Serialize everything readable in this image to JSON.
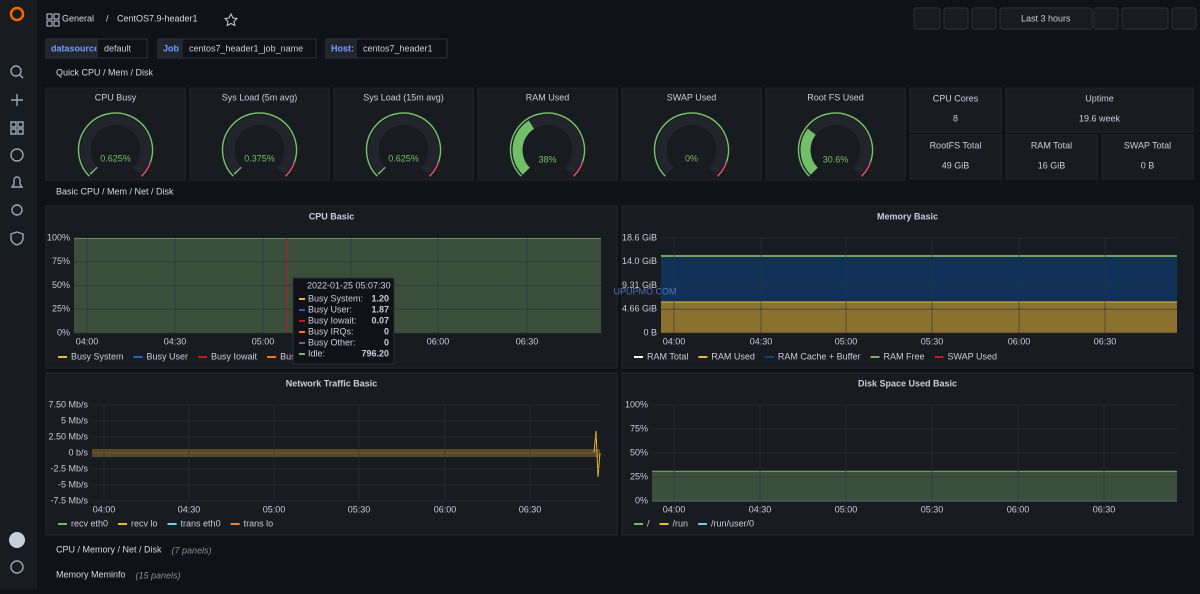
{
  "header": {
    "folder": "General",
    "separator": "/",
    "title": "CentOS7.9-header1",
    "time_range": "Last 3 hours"
  },
  "variables": [
    {
      "label": "datasource",
      "value": "default"
    },
    {
      "label": "Job",
      "value": "centos7_header1_job_name"
    },
    {
      "label": "Host:",
      "value": "centos7_header1"
    }
  ],
  "rows": [
    "Quick CPU / Mem / Disk",
    "Basic CPU / Mem / Net / Disk"
  ],
  "gauges": [
    {
      "title": "CPU Busy",
      "value": "0.625%"
    },
    {
      "title": "Sys Load (5m avg)",
      "value": "0.375%"
    },
    {
      "title": "Sys Load (15m avg)",
      "value": "0.625%"
    },
    {
      "title": "RAM Used",
      "value": "38%"
    },
    {
      "title": "SWAP Used",
      "value": "0%"
    },
    {
      "title": "Root FS Used",
      "value": "30.6%"
    }
  ],
  "stats": [
    {
      "title": "CPU Cores",
      "value": "8"
    },
    {
      "title": "Uptime",
      "value": "19.6 week"
    },
    {
      "title": "RootFS Total",
      "value": "49 GiB"
    },
    {
      "title": "RAM Total",
      "value": "16 GiB"
    },
    {
      "title": "SWAP Total",
      "value": "0 B"
    }
  ],
  "graphs": [
    {
      "title": "CPU Basic",
      "yticks": [
        "100%",
        "75%",
        "50%",
        "25%",
        "0%"
      ],
      "xticks": [
        "04:00",
        "04:30",
        "05:00",
        "05:30",
        "06:00",
        "06:30"
      ],
      "legend": [
        {
          "name": "Busy System",
          "color": "#EAB839"
        },
        {
          "name": "Busy User",
          "color": "#1F60C4"
        },
        {
          "name": "Busy Iowait",
          "color": "#C4162A"
        },
        {
          "name": "Busy IRQs",
          "color": "#FF780A"
        }
      ]
    },
    {
      "title": "Memory Basic",
      "yticks": [
        "18.6 GiB",
        "14.0 GiB",
        "9.31 GiB",
        "4.66 GiB",
        "0 B"
      ],
      "xticks": [
        "04:00",
        "04:30",
        "05:00",
        "05:30",
        "06:00",
        "06:30"
      ],
      "legend": [
        {
          "name": "RAM Total",
          "color": "#FFFFFF"
        },
        {
          "name": "RAM Used",
          "color": "#EAB839"
        },
        {
          "name": "RAM Cache + Buffer",
          "color": "#0A437C"
        },
        {
          "name": "RAM Free",
          "color": "#7EB26D"
        },
        {
          "name": "SWAP Used",
          "color": "#C4162A"
        }
      ]
    },
    {
      "title": "Network Traffic Basic",
      "yticks": [
        "7.50 Mb/s",
        "5 Mb/s",
        "2.50 Mb/s",
        "0 b/s",
        "-2.5 Mb/s",
        "-5 Mb/s",
        "-7.5 Mb/s"
      ],
      "xticks": [
        "04:00",
        "04:30",
        "05:00",
        "05:30",
        "06:00",
        "06:30"
      ],
      "legend": [
        {
          "name": "recv eth0",
          "color": "#7EB26D"
        },
        {
          "name": "recv lo",
          "color": "#EAB839"
        },
        {
          "name": "trans eth0",
          "color": "#6ED0E0"
        },
        {
          "name": "trans lo",
          "color": "#EF843C"
        }
      ]
    },
    {
      "title": "Disk Space Used Basic",
      "yticks": [
        "100%",
        "75%",
        "50%",
        "25%",
        "0%"
      ],
      "xticks": [
        "04:00",
        "04:30",
        "05:00",
        "05:30",
        "06:00",
        "06:30"
      ],
      "legend": [
        {
          "name": "/",
          "color": "#7EB26D"
        },
        {
          "name": "/run",
          "color": "#EAB839"
        },
        {
          "name": "/run/user/0",
          "color": "#6ED0E0"
        }
      ]
    }
  ],
  "tooltip": {
    "time": "2022-01-25 05:07:30",
    "rows": [
      {
        "name": "Busy System:",
        "value": "1.20",
        "color": "#EAB839"
      },
      {
        "name": "Busy User:",
        "value": "1.87",
        "color": "#1F60C4"
      },
      {
        "name": "Busy Iowait:",
        "value": "0.07",
        "color": "#C4162A"
      },
      {
        "name": "Busy IRQs:",
        "value": "0",
        "color": "#FF780A"
      },
      {
        "name": "Busy Other:",
        "value": "0",
        "color": "#705DA0"
      },
      {
        "name": "Idle:",
        "value": "796.20",
        "color": "#7EB26D"
      }
    ]
  },
  "collapsed_rows": [
    {
      "title": "CPU / Memory / Net / Disk",
      "note": "(7 panels)"
    },
    {
      "title": "Memory Meminfo",
      "note": "(15 panels)"
    }
  ],
  "watermark": "UPUPMO.COM"
}
